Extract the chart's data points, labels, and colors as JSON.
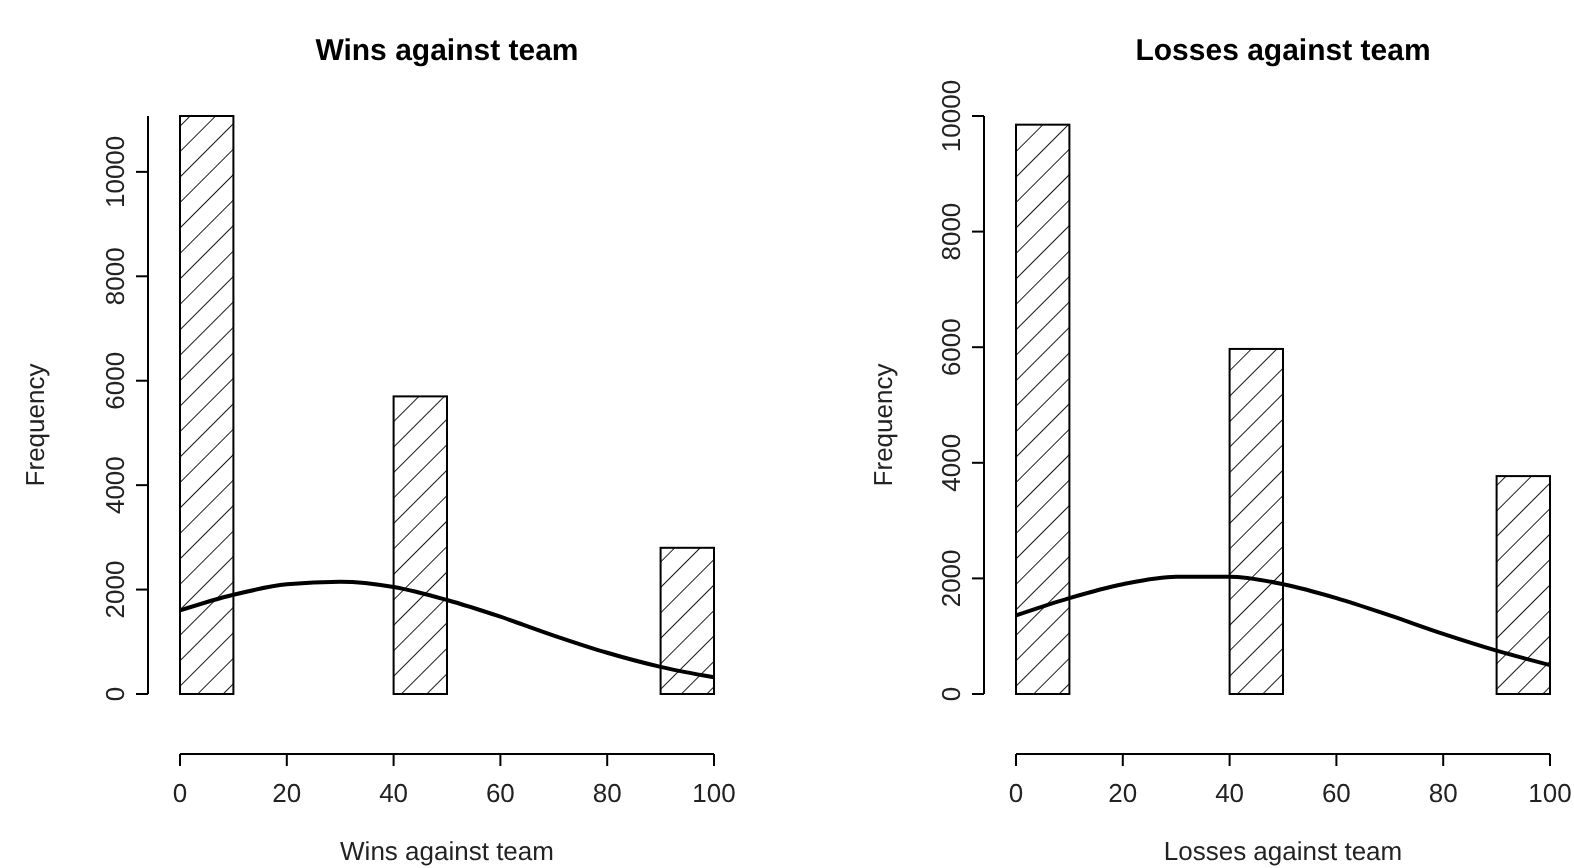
{
  "chart_data": [
    {
      "type": "histogram",
      "title": "Wins against team",
      "xlabel": "Wins against team",
      "ylabel": "Frequency",
      "xlim": [
        0,
        100
      ],
      "xticks": [
        0,
        20,
        40,
        60,
        80,
        100
      ],
      "ylim": [
        0,
        11070
      ],
      "yticks": [
        0,
        2000,
        4000,
        6000,
        8000,
        10000
      ],
      "series": [
        {
          "color": "#000000",
          "bins": [
            0,
            10,
            20,
            30,
            40,
            50,
            60,
            70,
            80,
            90,
            100
          ],
          "values": [
            11070,
            0,
            0,
            0,
            5700,
            0,
            0,
            0,
            0,
            2800
          ]
        },
        {
          "type": "line",
          "color": "#000000",
          "x": [
            0,
            10,
            20,
            30,
            40,
            50,
            60,
            70,
            80,
            90,
            100
          ],
          "values": [
            1600,
            1900,
            2100,
            2150,
            2050,
            1800,
            1480,
            1120,
            790,
            520,
            320
          ]
        }
      ]
    },
    {
      "type": "histogram",
      "title": "Losses against team",
      "xlabel": "Losses against team",
      "ylabel": "Frequency",
      "xlim": [
        0,
        100
      ],
      "xticks": [
        0,
        20,
        40,
        60,
        80,
        100
      ],
      "ylim": [
        0,
        10000
      ],
      "yticks": [
        0,
        2000,
        4000,
        6000,
        8000,
        10000
      ],
      "series": [
        {
          "color": "#000000",
          "bins": [
            0,
            10,
            20,
            30,
            40,
            50,
            60,
            70,
            80,
            90,
            100
          ],
          "values": [
            9850,
            0,
            0,
            0,
            5970,
            0,
            0,
            0,
            0,
            3770
          ]
        },
        {
          "type": "line",
          "color": "#000000",
          "x": [
            0,
            10,
            20,
            30,
            40,
            50,
            60,
            70,
            80,
            90,
            100
          ],
          "values": [
            1360,
            1660,
            1900,
            2030,
            2030,
            1900,
            1660,
            1360,
            1040,
            750,
            500
          ]
        }
      ]
    }
  ]
}
